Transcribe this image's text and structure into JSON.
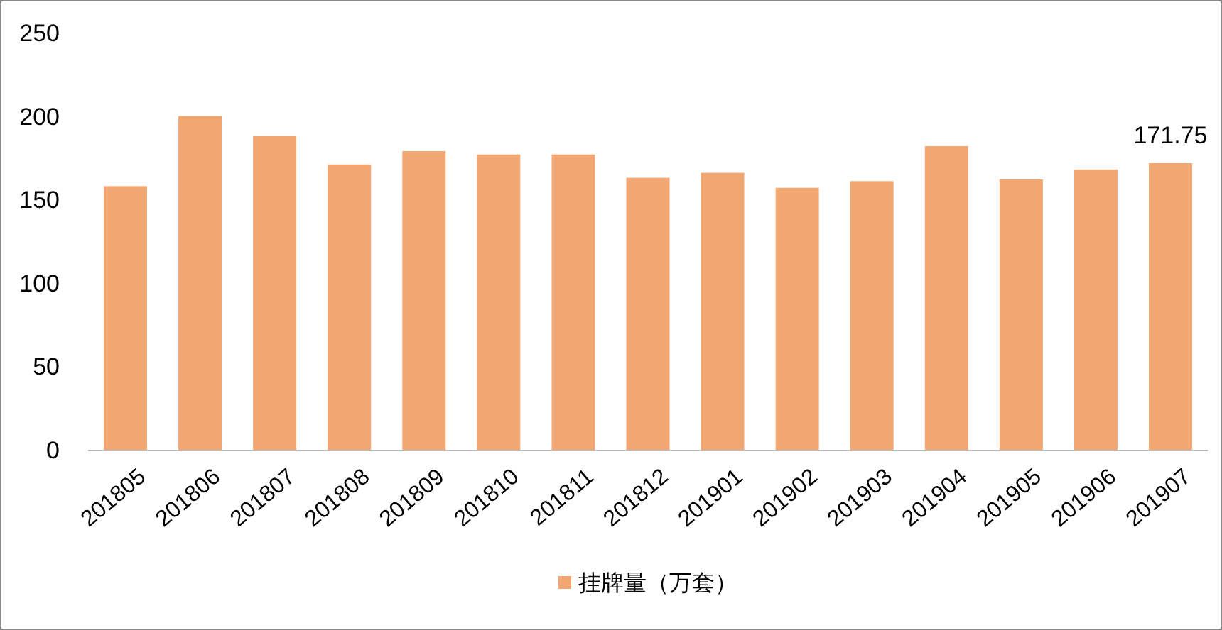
{
  "chart_data": {
    "type": "bar",
    "categories": [
      "201805",
      "201806",
      "201807",
      "201808",
      "201809",
      "201810",
      "201811",
      "201812",
      "201901",
      "201902",
      "201903",
      "201904",
      "201905",
      "201906",
      "201907"
    ],
    "series": [
      {
        "name": "挂牌量（万套）",
        "color": "#f2a672",
        "values": [
          158,
          200,
          188,
          171,
          179,
          177,
          177,
          163,
          166,
          157,
          161,
          182,
          162,
          168,
          171.75
        ],
        "value_labels": [
          null,
          null,
          null,
          null,
          null,
          null,
          null,
          null,
          null,
          null,
          null,
          null,
          null,
          null,
          "171.75"
        ]
      }
    ],
    "ylim": [
      0,
      250
    ],
    "yticks": [
      0,
      50,
      100,
      150,
      200,
      250
    ],
    "grid": false,
    "legend": "bottom"
  }
}
